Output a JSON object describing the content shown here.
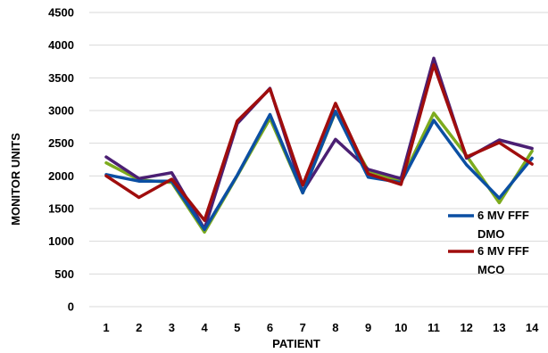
{
  "chart_data": {
    "type": "line",
    "title": "",
    "xlabel": "PATIENT",
    "ylabel": "MONITOR UNITS",
    "categories": [
      "1",
      "2",
      "3",
      "4",
      "5",
      "6",
      "7",
      "8",
      "9",
      "10",
      "11",
      "12",
      "13",
      "14"
    ],
    "ylim": [
      0,
      4500
    ],
    "yticks": [
      "0",
      "500",
      "1000",
      "1500",
      "2000",
      "2500",
      "3000",
      "3500",
      "4000",
      "4500"
    ],
    "grid": true,
    "legend_position": "right",
    "series": [
      {
        "color": "#7dab1e",
        "values": [
          2200,
          1940,
          1900,
          1140,
          2000,
          2880,
          1740,
          2980,
          2080,
          1920,
          2960,
          2310,
          1590,
          2380
        ]
      },
      {
        "color": "#4b1f73",
        "values": [
          2290,
          1960,
          2050,
          1190,
          2800,
          3340,
          1760,
          2560,
          2100,
          1960,
          3800,
          2270,
          2550,
          2420
        ]
      },
      {
        "name": "6 MV FFF DMO",
        "color": "#0b4fa3",
        "values": [
          2020,
          1920,
          1920,
          1180,
          2010,
          2940,
          1740,
          2990,
          1980,
          1900,
          2850,
          2170,
          1660,
          2270
        ]
      },
      {
        "name": "6 MV FFF MCO",
        "color": "#a00d0d",
        "values": [
          2000,
          1670,
          1950,
          1320,
          2840,
          3330,
          1860,
          3110,
          2030,
          1870,
          3700,
          2290,
          2510,
          2180
        ]
      }
    ],
    "legend": [
      {
        "label": "6 MV FFF",
        "label2": "DMO",
        "color": "#0b4fa3"
      },
      {
        "label": "6 MV FFF",
        "label2": "MCO",
        "color": "#a00d0d"
      }
    ]
  }
}
